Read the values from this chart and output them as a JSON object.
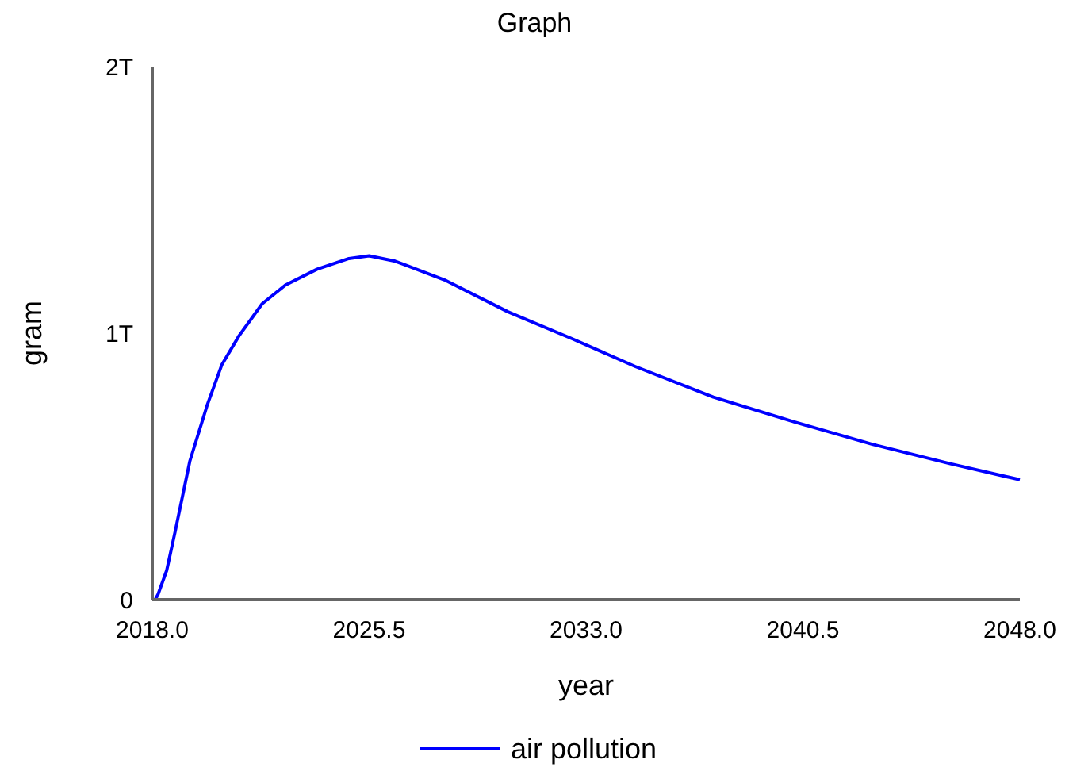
{
  "chart_data": {
    "type": "line",
    "title": "Graph",
    "xlabel": "year",
    "ylabel": "gram",
    "xlim": [
      2018,
      2048
    ],
    "xticks": [
      {
        "value": 2018,
        "label": "2018.0"
      },
      {
        "value": 2025.5,
        "label": "2025.5"
      },
      {
        "value": 2033,
        "label": "2033.0"
      },
      {
        "value": 2040.5,
        "label": "2040.5"
      },
      {
        "value": 2048,
        "label": "2048.0"
      }
    ],
    "ylim": [
      0,
      2000000000000
    ],
    "yticks": [
      0,
      {
        "value": 1000000000000,
        "label": "1T"
      },
      {
        "value": 2000000000000,
        "label": "2T"
      }
    ],
    "grid": false,
    "legend": "bottom",
    "marker": "none",
    "line_style": "solid",
    "x": [
      2018.1,
      2018.2,
      2018.5,
      2018.8,
      2019.3,
      2019.9,
      2020.4,
      2021,
      2021.8,
      2022.6,
      2023.7,
      2024.8,
      2025.5,
      2026.4,
      2028.1,
      2030.3,
      2032.5,
      2034.7,
      2037.4,
      2040.2,
      2042.9,
      2045.6,
      2048
    ],
    "series": [
      {
        "name": "air pollution",
        "color": "#0000ff",
        "values": [
          0,
          20000000000,
          110000000000,
          260000000000,
          520000000000,
          730000000000,
          880000000000,
          990000000000,
          1110000000000,
          1180000000000,
          1240000000000,
          1280000000000,
          1290000000000,
          1270000000000,
          1200000000000,
          1080000000000,
          980000000000,
          875000000000,
          760000000000,
          667000000000,
          583000000000,
          510000000000,
          450000000000
        ]
      }
    ]
  }
}
